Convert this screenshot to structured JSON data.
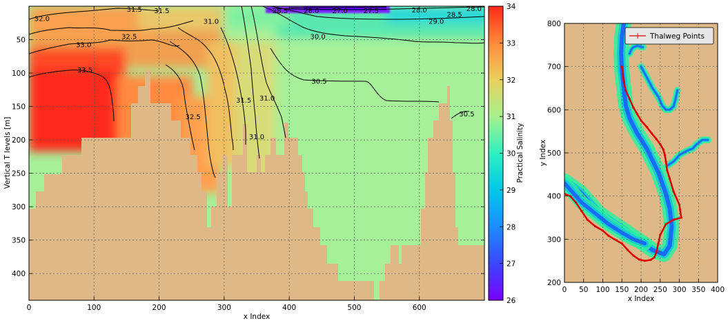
{
  "colors": {
    "land": "#deb887",
    "high_salinity": "#ff2a1a",
    "low_salinity": "#7a00ff",
    "thalweg": "#dd0000",
    "grid": "#444444"
  },
  "chart_data": [
    {
      "type": "heatmap",
      "title": "",
      "xlabel": "x Index",
      "ylabel": "Vertical T levels [m]",
      "xlim": [
        0,
        700
      ],
      "ylim": [
        440,
        0
      ],
      "y_inverted": true,
      "x_ticks": [
        "0",
        "100",
        "200",
        "300",
        "400",
        "500",
        "600"
      ],
      "x_tick_values": [
        0,
        100,
        200,
        300,
        400,
        500,
        600
      ],
      "y_ticks": [
        "50",
        "100",
        "150",
        "200",
        "250",
        "300",
        "350",
        "400"
      ],
      "y_tick_values": [
        50,
        100,
        150,
        200,
        250,
        300,
        350,
        400
      ],
      "grid": true,
      "colorbar": {
        "label": "Practical Salinity",
        "min": 26,
        "max": 34,
        "ticks": [
          "26",
          "27",
          "28",
          "29",
          "30",
          "31",
          "32",
          "33",
          "34"
        ],
        "tick_values": [
          26,
          27,
          28,
          29,
          30,
          31,
          32,
          33,
          34
        ]
      },
      "contour_labels": [
        {
          "text": "32.0",
          "x": 20,
          "y": 18
        },
        {
          "text": "31.5",
          "x": 162,
          "y": 4
        },
        {
          "text": "31.5",
          "x": 204,
          "y": 6
        },
        {
          "text": "32.5",
          "x": 154,
          "y": 45
        },
        {
          "text": "33.0",
          "x": 84,
          "y": 57
        },
        {
          "text": "33.5",
          "x": 86,
          "y": 95
        },
        {
          "text": "31.0",
          "x": 280,
          "y": 22
        },
        {
          "text": "31.5",
          "x": 330,
          "y": 140
        },
        {
          "text": "32.5",
          "x": 252,
          "y": 165
        },
        {
          "text": "31.0",
          "x": 366,
          "y": 137
        },
        {
          "text": "31.0",
          "x": 350,
          "y": 195
        },
        {
          "text": "28.5",
          "x": 386,
          "y": 6
        },
        {
          "text": "28.0",
          "x": 434,
          "y": 6
        },
        {
          "text": "27.0",
          "x": 478,
          "y": 6
        },
        {
          "text": "27.5",
          "x": 526,
          "y": 6
        },
        {
          "text": "28.0",
          "x": 600,
          "y": 5
        },
        {
          "text": "28.5",
          "x": 654,
          "y": 12
        },
        {
          "text": "28.0",
          "x": 684,
          "y": 3
        },
        {
          "text": "29.0",
          "x": 626,
          "y": 22
        },
        {
          "text": "30.0",
          "x": 444,
          "y": 45
        },
        {
          "text": "30.5",
          "x": 446,
          "y": 112
        },
        {
          "text": "30.5",
          "x": 673,
          "y": 161
        }
      ]
    },
    {
      "type": "line",
      "title": "",
      "xlabel": "x Index",
      "ylabel": "y Index",
      "xlim": [
        0,
        400
      ],
      "ylim": [
        200,
        800
      ],
      "x_ticks": [
        "0",
        "50",
        "100",
        "150",
        "200",
        "250",
        "300",
        "350",
        "400"
      ],
      "x_tick_values": [
        0,
        50,
        100,
        150,
        200,
        250,
        300,
        350,
        400
      ],
      "y_ticks": [
        "200",
        "300",
        "400",
        "500",
        "600",
        "700",
        "800"
      ],
      "y_tick_values": [
        200,
        300,
        400,
        500,
        600,
        700,
        800
      ],
      "grid": true,
      "legend": {
        "position": "top-right"
      },
      "series": [
        {
          "name": "Thalweg Points",
          "color": "#dd0000",
          "x": [
            0,
            15,
            30,
            45,
            60,
            80,
            100,
            115,
            130,
            150,
            165,
            180,
            195,
            210,
            225,
            235,
            240,
            245,
            250,
            265,
            285,
            305,
            300,
            285,
            275,
            268,
            265,
            262,
            258,
            250,
            240,
            228,
            215,
            200,
            190,
            180,
            170,
            160,
            155,
            152,
            150
          ],
          "y": [
            405,
            400,
            385,
            365,
            345,
            330,
            320,
            308,
            300,
            290,
            275,
            262,
            253,
            250,
            252,
            258,
            270,
            290,
            310,
            335,
            345,
            350,
            380,
            410,
            440,
            460,
            480,
            495,
            508,
            520,
            532,
            545,
            560,
            575,
            590,
            605,
            625,
            645,
            665,
            685,
            700
          ]
        }
      ],
      "channel_network": [
        {
          "x": [
            0,
            40,
            90,
            140,
            190,
            230,
            260,
            275,
            280,
            275,
            265,
            245,
            215,
            190,
            170,
            160,
            155,
            150,
            148,
            150,
            155
          ],
          "y": [
            435,
            410,
            360,
            330,
            300,
            275,
            265,
            285,
            330,
            370,
            405,
            455,
            510,
            545,
            580,
            610,
            650,
            690,
            730,
            770,
            800
          ]
        },
        {
          "x": [
            200,
            215,
            230,
            245,
            255,
            265,
            275,
            285,
            290,
            295
          ],
          "y": [
            700,
            675,
            650,
            630,
            610,
            600,
            600,
            608,
            625,
            645
          ]
        },
        {
          "x": [
            170,
            175,
            180,
            190,
            200,
            205
          ],
          "y": [
            730,
            740,
            745,
            748,
            746,
            745
          ]
        },
        {
          "x": [
            268,
            285,
            300,
            320,
            335,
            345,
            360,
            375
          ],
          "y": [
            470,
            480,
            495,
            505,
            510,
            520,
            530,
            530
          ]
        },
        {
          "x": [
            0,
            20,
            45,
            80,
            115,
            150,
            180,
            210
          ],
          "y": [
            430,
            410,
            385,
            360,
            335,
            315,
            300,
            290
          ]
        }
      ]
    }
  ]
}
